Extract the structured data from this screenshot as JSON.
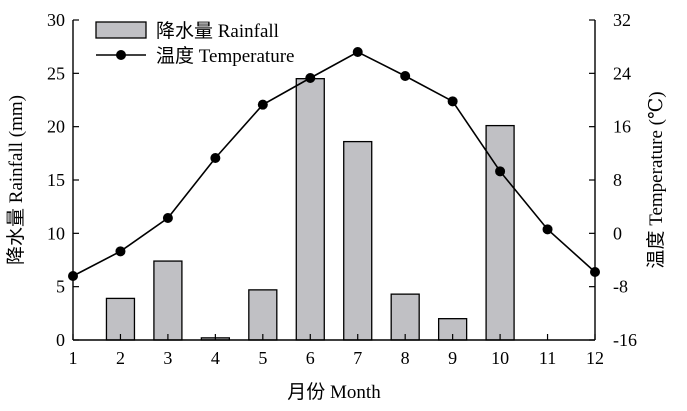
{
  "chart_data": {
    "type": "bar",
    "x": [
      1,
      2,
      3,
      4,
      5,
      6,
      7,
      8,
      9,
      10,
      11,
      12
    ],
    "xlabel": "月份 Month",
    "x_ticks": [
      "1",
      "2",
      "3",
      "4",
      "5",
      "6",
      "7",
      "8",
      "9",
      "10",
      "11",
      "12"
    ],
    "series": [
      {
        "name": "降水量 Rainfall",
        "type": "bar",
        "axis": "left",
        "values": [
          0,
          3.9,
          7.4,
          0.2,
          4.7,
          24.5,
          18.6,
          4.3,
          2.0,
          20.1,
          0,
          0
        ],
        "color": "#c0c0c4"
      },
      {
        "name": "温度 Temperature",
        "type": "line",
        "axis": "right",
        "marker": "circle",
        "values": [
          -6.4,
          -2.7,
          2.3,
          11.3,
          19.3,
          23.3,
          27.2,
          23.6,
          19.8,
          9.3,
          0.6,
          -5.8
        ],
        "color": "#000000"
      }
    ],
    "y_left": {
      "label": "降水量 Rainfall (mm)",
      "range": [
        0,
        30
      ],
      "ticks": [
        "0",
        "5",
        "10",
        "15",
        "20",
        "25",
        "30"
      ]
    },
    "y_right": {
      "label": "温度 Temperature (℃)",
      "range": [
        -16,
        32
      ],
      "ticks": [
        "-16",
        "-8",
        "0",
        "8",
        "16",
        "24",
        "32"
      ]
    },
    "legend": {
      "position": "top-left",
      "bar_label": "降水量 Rainfall",
      "line_label": "温度 Temperature"
    },
    "grid": false
  }
}
